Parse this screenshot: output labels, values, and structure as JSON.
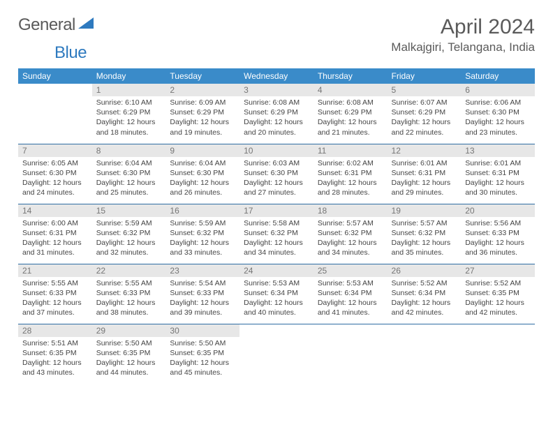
{
  "logo": {
    "text_left": "General",
    "text_right": "Blue"
  },
  "header": {
    "month_title": "April 2024",
    "location": "Malkajgiri, Telangana, India"
  },
  "colors": {
    "header_bg": "#3a8bc9",
    "header_text": "#ffffff",
    "daynum_bg": "#e7e7e7",
    "daynum_text": "#767676",
    "row_border": "#2e6da3",
    "body_text": "#444444",
    "title_text": "#5a5a5a",
    "logo_accent": "#2e7abf"
  },
  "typography": {
    "month_title_fontsize": 30,
    "location_fontsize": 17,
    "dayhead_fontsize": 12,
    "daynum_fontsize": 12,
    "cell_fontsize": 10.5
  },
  "weekdays": [
    "Sunday",
    "Monday",
    "Tuesday",
    "Wednesday",
    "Thursday",
    "Friday",
    "Saturday"
  ],
  "weeks": [
    [
      null,
      {
        "d": "1",
        "sr": "6:10 AM",
        "ss": "6:29 PM",
        "dl": "12 hours and 18 minutes."
      },
      {
        "d": "2",
        "sr": "6:09 AM",
        "ss": "6:29 PM",
        "dl": "12 hours and 19 minutes."
      },
      {
        "d": "3",
        "sr": "6:08 AM",
        "ss": "6:29 PM",
        "dl": "12 hours and 20 minutes."
      },
      {
        "d": "4",
        "sr": "6:08 AM",
        "ss": "6:29 PM",
        "dl": "12 hours and 21 minutes."
      },
      {
        "d": "5",
        "sr": "6:07 AM",
        "ss": "6:29 PM",
        "dl": "12 hours and 22 minutes."
      },
      {
        "d": "6",
        "sr": "6:06 AM",
        "ss": "6:30 PM",
        "dl": "12 hours and 23 minutes."
      }
    ],
    [
      {
        "d": "7",
        "sr": "6:05 AM",
        "ss": "6:30 PM",
        "dl": "12 hours and 24 minutes."
      },
      {
        "d": "8",
        "sr": "6:04 AM",
        "ss": "6:30 PM",
        "dl": "12 hours and 25 minutes."
      },
      {
        "d": "9",
        "sr": "6:04 AM",
        "ss": "6:30 PM",
        "dl": "12 hours and 26 minutes."
      },
      {
        "d": "10",
        "sr": "6:03 AM",
        "ss": "6:30 PM",
        "dl": "12 hours and 27 minutes."
      },
      {
        "d": "11",
        "sr": "6:02 AM",
        "ss": "6:31 PM",
        "dl": "12 hours and 28 minutes."
      },
      {
        "d": "12",
        "sr": "6:01 AM",
        "ss": "6:31 PM",
        "dl": "12 hours and 29 minutes."
      },
      {
        "d": "13",
        "sr": "6:01 AM",
        "ss": "6:31 PM",
        "dl": "12 hours and 30 minutes."
      }
    ],
    [
      {
        "d": "14",
        "sr": "6:00 AM",
        "ss": "6:31 PM",
        "dl": "12 hours and 31 minutes."
      },
      {
        "d": "15",
        "sr": "5:59 AM",
        "ss": "6:32 PM",
        "dl": "12 hours and 32 minutes."
      },
      {
        "d": "16",
        "sr": "5:59 AM",
        "ss": "6:32 PM",
        "dl": "12 hours and 33 minutes."
      },
      {
        "d": "17",
        "sr": "5:58 AM",
        "ss": "6:32 PM",
        "dl": "12 hours and 34 minutes."
      },
      {
        "d": "18",
        "sr": "5:57 AM",
        "ss": "6:32 PM",
        "dl": "12 hours and 34 minutes."
      },
      {
        "d": "19",
        "sr": "5:57 AM",
        "ss": "6:32 PM",
        "dl": "12 hours and 35 minutes."
      },
      {
        "d": "20",
        "sr": "5:56 AM",
        "ss": "6:33 PM",
        "dl": "12 hours and 36 minutes."
      }
    ],
    [
      {
        "d": "21",
        "sr": "5:55 AM",
        "ss": "6:33 PM",
        "dl": "12 hours and 37 minutes."
      },
      {
        "d": "22",
        "sr": "5:55 AM",
        "ss": "6:33 PM",
        "dl": "12 hours and 38 minutes."
      },
      {
        "d": "23",
        "sr": "5:54 AM",
        "ss": "6:33 PM",
        "dl": "12 hours and 39 minutes."
      },
      {
        "d": "24",
        "sr": "5:53 AM",
        "ss": "6:34 PM",
        "dl": "12 hours and 40 minutes."
      },
      {
        "d": "25",
        "sr": "5:53 AM",
        "ss": "6:34 PM",
        "dl": "12 hours and 41 minutes."
      },
      {
        "d": "26",
        "sr": "5:52 AM",
        "ss": "6:34 PM",
        "dl": "12 hours and 42 minutes."
      },
      {
        "d": "27",
        "sr": "5:52 AM",
        "ss": "6:35 PM",
        "dl": "12 hours and 42 minutes."
      }
    ],
    [
      {
        "d": "28",
        "sr": "5:51 AM",
        "ss": "6:35 PM",
        "dl": "12 hours and 43 minutes."
      },
      {
        "d": "29",
        "sr": "5:50 AM",
        "ss": "6:35 PM",
        "dl": "12 hours and 44 minutes."
      },
      {
        "d": "30",
        "sr": "5:50 AM",
        "ss": "6:35 PM",
        "dl": "12 hours and 45 minutes."
      },
      null,
      null,
      null,
      null
    ]
  ],
  "labels": {
    "sunrise": "Sunrise:",
    "sunset": "Sunset:",
    "daylight": "Daylight:"
  }
}
